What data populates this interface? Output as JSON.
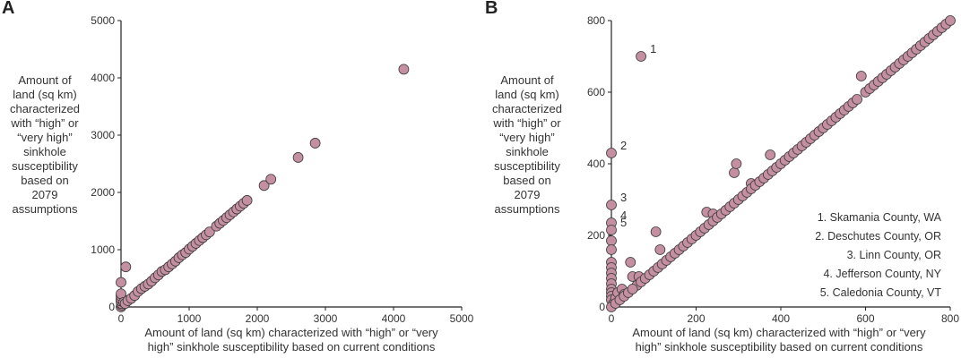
{
  "chart_data": [
    {
      "type": "scatter",
      "panel_label": "A",
      "title": "",
      "xlabel_lines": [
        "Amount of land (sq km) characterized with “high” or  “very",
        "high” sinkhole susceptibility based on current conditions"
      ],
      "ylabel_lines": [
        "Amount of",
        "land (sq km)",
        "characterized",
        "with “high” or",
        "“very high”",
        "sinkhole",
        "susceptibility",
        "based on",
        "2079",
        "assumptions"
      ],
      "xlim": [
        0,
        5000
      ],
      "ylim": [
        0,
        5000
      ],
      "xticks": [
        0,
        1000,
        2000,
        3000,
        4000,
        5000
      ],
      "yticks": [
        0,
        1000,
        2000,
        3000,
        4000,
        5000
      ],
      "xtick_labels": [
        "0",
        "1000",
        "2000",
        "3000",
        "4000",
        "5000"
      ],
      "ytick_labels": [
        "0",
        "1000",
        "2000",
        "3000",
        "4000",
        "5000"
      ],
      "grid": false,
      "marker_color": "#c48fa0",
      "points": [
        {
          "x": 0,
          "y": 0
        },
        {
          "x": 10,
          "y": 30
        },
        {
          "x": 5,
          "y": 60
        },
        {
          "x": 0,
          "y": 100
        },
        {
          "x": 0,
          "y": 140
        },
        {
          "x": 0,
          "y": 190
        },
        {
          "x": 0,
          "y": 230
        },
        {
          "x": 0,
          "y": 430
        },
        {
          "x": 70,
          "y": 700
        },
        {
          "x": 40,
          "y": 80
        },
        {
          "x": 60,
          "y": 60
        },
        {
          "x": 100,
          "y": 110
        },
        {
          "x": 150,
          "y": 150
        },
        {
          "x": 200,
          "y": 200
        },
        {
          "x": 250,
          "y": 270
        },
        {
          "x": 300,
          "y": 320
        },
        {
          "x": 350,
          "y": 360
        },
        {
          "x": 400,
          "y": 400
        },
        {
          "x": 450,
          "y": 450
        },
        {
          "x": 500,
          "y": 510
        },
        {
          "x": 550,
          "y": 560
        },
        {
          "x": 600,
          "y": 620
        },
        {
          "x": 650,
          "y": 650
        },
        {
          "x": 700,
          "y": 700
        },
        {
          "x": 750,
          "y": 750
        },
        {
          "x": 800,
          "y": 800
        },
        {
          "x": 850,
          "y": 860
        },
        {
          "x": 900,
          "y": 910
        },
        {
          "x": 950,
          "y": 950
        },
        {
          "x": 1000,
          "y": 1010
        },
        {
          "x": 1050,
          "y": 1060
        },
        {
          "x": 1100,
          "y": 1110
        },
        {
          "x": 1150,
          "y": 1160
        },
        {
          "x": 1200,
          "y": 1210
        },
        {
          "x": 1250,
          "y": 1260
        },
        {
          "x": 1300,
          "y": 1310
        },
        {
          "x": 1400,
          "y": 1410
        },
        {
          "x": 1450,
          "y": 1460
        },
        {
          "x": 1500,
          "y": 1510
        },
        {
          "x": 1550,
          "y": 1560
        },
        {
          "x": 1600,
          "y": 1610
        },
        {
          "x": 1650,
          "y": 1660
        },
        {
          "x": 1700,
          "y": 1710
        },
        {
          "x": 1750,
          "y": 1760
        },
        {
          "x": 1800,
          "y": 1810
        },
        {
          "x": 1850,
          "y": 1860
        },
        {
          "x": 2100,
          "y": 2120
        },
        {
          "x": 2200,
          "y": 2230
        },
        {
          "x": 2600,
          "y": 2610
        },
        {
          "x": 2850,
          "y": 2860
        },
        {
          "x": 4150,
          "y": 4150
        }
      ]
    },
    {
      "type": "scatter",
      "panel_label": "B",
      "title": "",
      "xlabel_lines": [
        "Amount of land (sq km) characterized with “high” or  “very",
        "high” sinkhole susceptibility based on current conditions"
      ],
      "ylabel_lines": [
        "Amount of",
        "land (sq km)",
        "characterized",
        "with “high” or",
        "“very high”",
        "sinkhole",
        "susceptibility",
        "based on",
        "2079",
        "assumptions"
      ],
      "xlim": [
        0,
        800
      ],
      "ylim": [
        0,
        800
      ],
      "xticks": [
        0,
        200,
        400,
        600,
        800
      ],
      "yticks": [
        0,
        200,
        400,
        600,
        800
      ],
      "xtick_labels": [
        "0",
        "200",
        "400",
        "600",
        "800"
      ],
      "ytick_labels": [
        "0",
        "200",
        "400",
        "600",
        "800"
      ],
      "grid": false,
      "marker_color": "#c48fa0",
      "annotations": [
        {
          "text": "1",
          "x": 70,
          "y": 700
        },
        {
          "text": "2",
          "x": 0,
          "y": 430
        },
        {
          "text": "3",
          "x": 0,
          "y": 285
        },
        {
          "text": "4",
          "x": 0,
          "y": 235
        },
        {
          "text": "5",
          "x": 0,
          "y": 215
        }
      ],
      "legend": [
        "1. Skamania County, WA",
        "2. Deschutes County, OR",
        "3. Linn County, OR",
        "4. Jefferson County, NY",
        "5. Caledonia County, VT"
      ],
      "legend_position": "bottom-right",
      "points": [
        {
          "x": 70,
          "y": 700
        },
        {
          "x": 0,
          "y": 430
        },
        {
          "x": 0,
          "y": 285
        },
        {
          "x": 0,
          "y": 235
        },
        {
          "x": 0,
          "y": 215
        },
        {
          "x": 0,
          "y": 185
        },
        {
          "x": 0,
          "y": 160
        },
        {
          "x": 0,
          "y": 125
        },
        {
          "x": 0,
          "y": 110
        },
        {
          "x": 0,
          "y": 95
        },
        {
          "x": 0,
          "y": 80
        },
        {
          "x": 0,
          "y": 65
        },
        {
          "x": 0,
          "y": 50
        },
        {
          "x": 0,
          "y": 40
        },
        {
          "x": 0,
          "y": 30
        },
        {
          "x": 0,
          "y": 20
        },
        {
          "x": 5,
          "y": 10
        },
        {
          "x": 10,
          "y": 25
        },
        {
          "x": 15,
          "y": 40
        },
        {
          "x": 25,
          "y": 50
        },
        {
          "x": 30,
          "y": 35
        },
        {
          "x": 45,
          "y": 125
        },
        {
          "x": 50,
          "y": 85
        },
        {
          "x": 65,
          "y": 85
        },
        {
          "x": 60,
          "y": 60
        },
        {
          "x": 105,
          "y": 210
        },
        {
          "x": 115,
          "y": 160
        },
        {
          "x": 225,
          "y": 265
        },
        {
          "x": 240,
          "y": 260
        },
        {
          "x": 290,
          "y": 375
        },
        {
          "x": 295,
          "y": 400
        },
        {
          "x": 330,
          "y": 345
        },
        {
          "x": 375,
          "y": 425
        },
        {
          "x": 590,
          "y": 645
        },
        {
          "x": 0,
          "y": 0
        },
        {
          "x": 10,
          "y": 10
        },
        {
          "x": 20,
          "y": 20
        },
        {
          "x": 30,
          "y": 30
        },
        {
          "x": 40,
          "y": 40
        },
        {
          "x": 50,
          "y": 50
        },
        {
          "x": 70,
          "y": 70
        },
        {
          "x": 80,
          "y": 80
        },
        {
          "x": 90,
          "y": 90
        },
        {
          "x": 100,
          "y": 100
        },
        {
          "x": 110,
          "y": 110
        },
        {
          "x": 120,
          "y": 120
        },
        {
          "x": 130,
          "y": 130
        },
        {
          "x": 140,
          "y": 140
        },
        {
          "x": 150,
          "y": 150
        },
        {
          "x": 160,
          "y": 160
        },
        {
          "x": 170,
          "y": 170
        },
        {
          "x": 180,
          "y": 180
        },
        {
          "x": 190,
          "y": 190
        },
        {
          "x": 200,
          "y": 200
        },
        {
          "x": 210,
          "y": 210
        },
        {
          "x": 220,
          "y": 220
        },
        {
          "x": 230,
          "y": 230
        },
        {
          "x": 240,
          "y": 240
        },
        {
          "x": 250,
          "y": 250
        },
        {
          "x": 260,
          "y": 260
        },
        {
          "x": 270,
          "y": 270
        },
        {
          "x": 280,
          "y": 280
        },
        {
          "x": 290,
          "y": 290
        },
        {
          "x": 300,
          "y": 300
        },
        {
          "x": 310,
          "y": 310
        },
        {
          "x": 320,
          "y": 320
        },
        {
          "x": 330,
          "y": 330
        },
        {
          "x": 340,
          "y": 340
        },
        {
          "x": 350,
          "y": 350
        },
        {
          "x": 360,
          "y": 360
        },
        {
          "x": 370,
          "y": 370
        },
        {
          "x": 380,
          "y": 380
        },
        {
          "x": 390,
          "y": 390
        },
        {
          "x": 400,
          "y": 400
        },
        {
          "x": 410,
          "y": 410
        },
        {
          "x": 420,
          "y": 420
        },
        {
          "x": 430,
          "y": 430
        },
        {
          "x": 440,
          "y": 440
        },
        {
          "x": 450,
          "y": 450
        },
        {
          "x": 460,
          "y": 460
        },
        {
          "x": 470,
          "y": 470
        },
        {
          "x": 480,
          "y": 480
        },
        {
          "x": 490,
          "y": 490
        },
        {
          "x": 500,
          "y": 500
        },
        {
          "x": 510,
          "y": 510
        },
        {
          "x": 520,
          "y": 520
        },
        {
          "x": 530,
          "y": 530
        },
        {
          "x": 540,
          "y": 540
        },
        {
          "x": 550,
          "y": 550
        },
        {
          "x": 560,
          "y": 560
        },
        {
          "x": 570,
          "y": 570
        },
        {
          "x": 580,
          "y": 580
        },
        {
          "x": 600,
          "y": 600
        },
        {
          "x": 610,
          "y": 610
        },
        {
          "x": 620,
          "y": 620
        },
        {
          "x": 630,
          "y": 630
        },
        {
          "x": 640,
          "y": 640
        },
        {
          "x": 650,
          "y": 650
        },
        {
          "x": 660,
          "y": 660
        },
        {
          "x": 670,
          "y": 670
        },
        {
          "x": 680,
          "y": 680
        },
        {
          "x": 690,
          "y": 690
        },
        {
          "x": 700,
          "y": 700
        },
        {
          "x": 710,
          "y": 710
        },
        {
          "x": 720,
          "y": 720
        },
        {
          "x": 730,
          "y": 730
        },
        {
          "x": 740,
          "y": 740
        },
        {
          "x": 750,
          "y": 750
        },
        {
          "x": 760,
          "y": 760
        },
        {
          "x": 770,
          "y": 770
        },
        {
          "x": 780,
          "y": 780
        },
        {
          "x": 790,
          "y": 790
        },
        {
          "x": 800,
          "y": 800
        }
      ]
    }
  ]
}
